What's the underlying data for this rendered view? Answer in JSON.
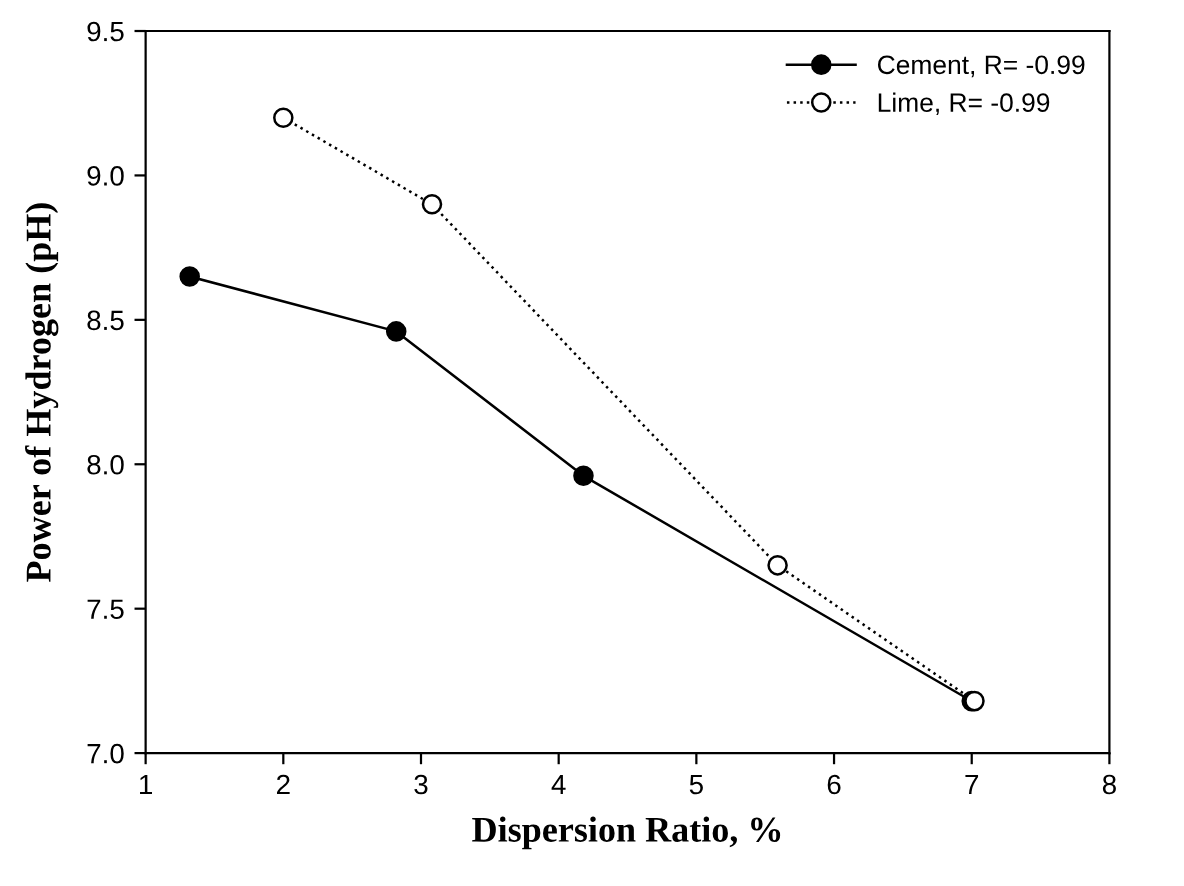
{
  "chart_data": {
    "type": "line",
    "xlabel": "Dispersion Ratio, %",
    "ylabel": "Power of Hydrogen (pH)",
    "xlim": [
      1,
      8
    ],
    "xticks": [
      1,
      2,
      3,
      4,
      5,
      6,
      7,
      8
    ],
    "ylim": [
      7.0,
      9.5
    ],
    "yticks": [
      {
        "value": 7.0,
        "label": "7.0"
      },
      {
        "value": 7.5,
        "label": "7.5"
      },
      {
        "value": 8.0,
        "label": "8.0"
      },
      {
        "value": 8.5,
        "label": "8.5"
      },
      {
        "value": 9.0,
        "label": "9.0"
      },
      {
        "value": 9.5,
        "label": "9.5"
      }
    ],
    "grid": false,
    "legend": "top right",
    "series": [
      {
        "name": "Cement, R= -0.99",
        "color": "#000000",
        "x": [
          1.32,
          2.82,
          4.18,
          7.0
        ],
        "values": [
          8.65,
          8.46,
          7.96,
          7.18
        ],
        "marker": "circle",
        "line_style": "solid"
      },
      {
        "name": "Lime, R= -0.99",
        "color": "#000000",
        "x": [
          2.0,
          3.08,
          5.59,
          7.02
        ],
        "values": [
          9.2,
          8.9,
          7.65,
          7.18
        ],
        "marker": "circle",
        "line_style": "dotted"
      }
    ]
  }
}
